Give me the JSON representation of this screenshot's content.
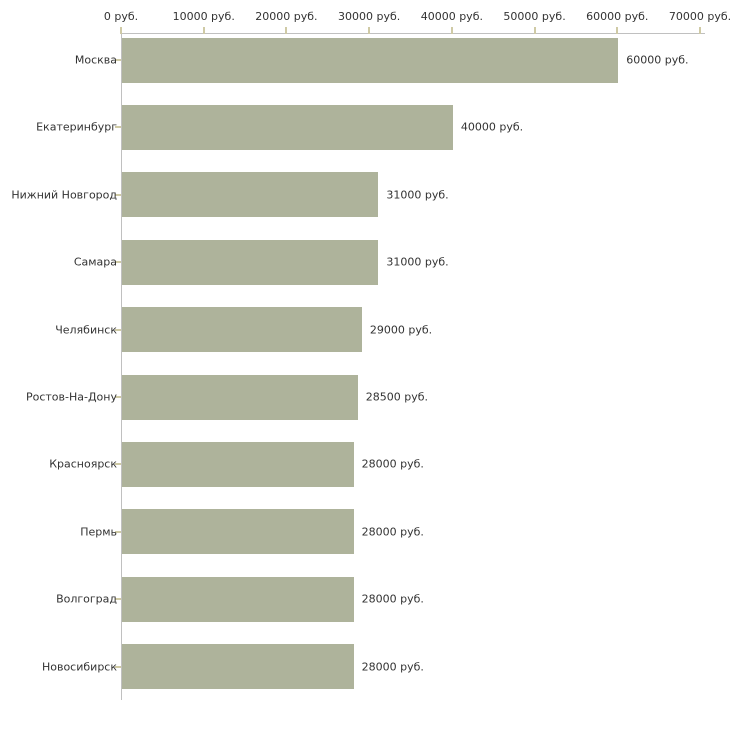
{
  "chart_data": {
    "type": "bar",
    "orientation": "horizontal",
    "title": "",
    "categories": [
      "Москва",
      "Екатеринбург",
      "Нижний Новгород",
      "Самара",
      "Челябинск",
      "Ростов-На-Дону",
      "Красноярск",
      "Пермь",
      "Волгоград",
      "Новосибирск"
    ],
    "values": [
      60000,
      40000,
      31000,
      31000,
      29000,
      28500,
      28000,
      28000,
      28000,
      28000
    ],
    "bar_labels": [
      "60000 руб.",
      "40000 руб.",
      "31000 руб.",
      "31000 руб.",
      "29000 руб.",
      "28500 руб.",
      "28000 руб.",
      "28000 руб.",
      "28000 руб.",
      "28000 руб."
    ],
    "x_tick_values": [
      0,
      10000,
      20000,
      30000,
      40000,
      50000,
      60000,
      70000
    ],
    "x_tick_labels": [
      "0 руб.",
      "10000 руб.",
      "20000 руб.",
      "30000 руб.",
      "40000 руб.",
      "50000 руб.",
      "60000 руб.",
      "70000 руб."
    ],
    "xlim": [
      0,
      70000
    ],
    "unit_suffix": " руб.",
    "grid": false,
    "legend": "none",
    "axis_label_position": "top",
    "colors": {
      "bar": "#aeb39b",
      "axis_line": "#c0c0c0",
      "tick_mark": "#cfcaa5",
      "label_text": "#333333",
      "background": "#ffffff"
    }
  }
}
